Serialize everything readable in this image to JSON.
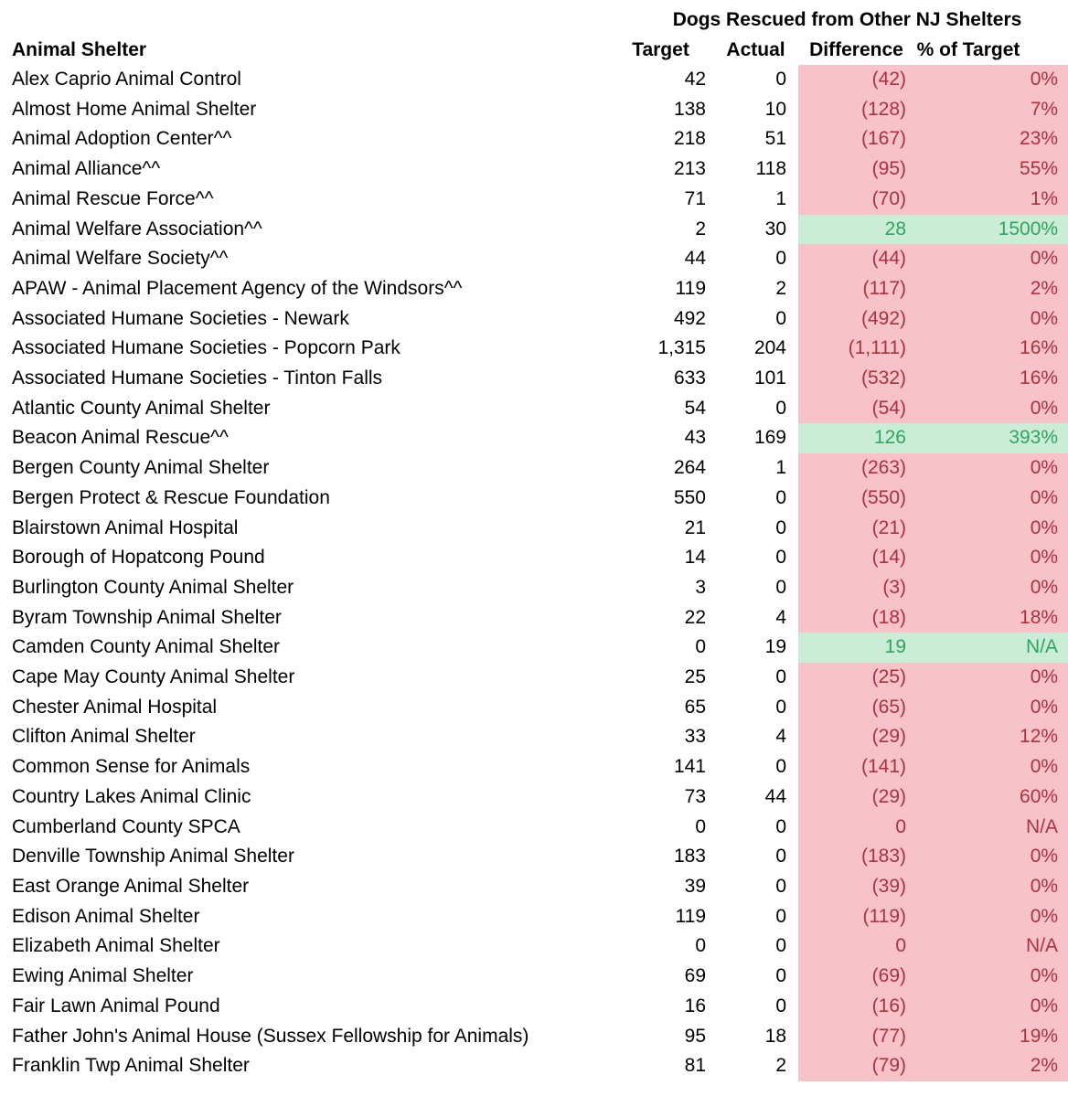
{
  "table": {
    "title": "Dogs Rescued from Other NJ Shelters",
    "columns": {
      "shelter": "Animal Shelter",
      "target": "Target",
      "actual": "Actual",
      "difference": "Difference",
      "pct_of_target": "% of Target"
    },
    "rows": [
      {
        "shelter": "Alex Caprio Animal Control",
        "target": "42",
        "actual": "0",
        "difference": "(42)",
        "pct_of_target": "0%",
        "status": "neg"
      },
      {
        "shelter": "Almost Home Animal Shelter",
        "target": "138",
        "actual": "10",
        "difference": "(128)",
        "pct_of_target": "7%",
        "status": "neg"
      },
      {
        "shelter": "Animal Adoption Center^^",
        "target": "218",
        "actual": "51",
        "difference": "(167)",
        "pct_of_target": "23%",
        "status": "neg"
      },
      {
        "shelter": "Animal Alliance^^",
        "target": "213",
        "actual": "118",
        "difference": "(95)",
        "pct_of_target": "55%",
        "status": "neg"
      },
      {
        "shelter": "Animal Rescue Force^^",
        "target": "71",
        "actual": "1",
        "difference": "(70)",
        "pct_of_target": "1%",
        "status": "neg"
      },
      {
        "shelter": "Animal Welfare Association^^",
        "target": "2",
        "actual": "30",
        "difference": "28",
        "pct_of_target": "1500%",
        "status": "pos"
      },
      {
        "shelter": "Animal Welfare Society^^",
        "target": "44",
        "actual": "0",
        "difference": "(44)",
        "pct_of_target": "0%",
        "status": "neg"
      },
      {
        "shelter": "APAW - Animal Placement Agency of the Windsors^^",
        "target": "119",
        "actual": "2",
        "difference": "(117)",
        "pct_of_target": "2%",
        "status": "neg"
      },
      {
        "shelter": "Associated Humane Societies - Newark",
        "target": "492",
        "actual": "0",
        "difference": "(492)",
        "pct_of_target": "0%",
        "status": "neg"
      },
      {
        "shelter": "Associated Humane Societies - Popcorn Park",
        "target": "1,315",
        "actual": "204",
        "difference": "(1,111)",
        "pct_of_target": "16%",
        "status": "neg"
      },
      {
        "shelter": "Associated Humane Societies - Tinton Falls",
        "target": "633",
        "actual": "101",
        "difference": "(532)",
        "pct_of_target": "16%",
        "status": "neg"
      },
      {
        "shelter": "Atlantic County Animal Shelter",
        "target": "54",
        "actual": "0",
        "difference": "(54)",
        "pct_of_target": "0%",
        "status": "neg"
      },
      {
        "shelter": "Beacon Animal Rescue^^",
        "target": "43",
        "actual": "169",
        "difference": "126",
        "pct_of_target": "393%",
        "status": "pos"
      },
      {
        "shelter": "Bergen County Animal Shelter",
        "target": "264",
        "actual": "1",
        "difference": "(263)",
        "pct_of_target": "0%",
        "status": "neg"
      },
      {
        "shelter": "Bergen Protect & Rescue Foundation",
        "target": "550",
        "actual": "0",
        "difference": "(550)",
        "pct_of_target": "0%",
        "status": "neg"
      },
      {
        "shelter": "Blairstown Animal Hospital",
        "target": "21",
        "actual": "0",
        "difference": "(21)",
        "pct_of_target": "0%",
        "status": "neg"
      },
      {
        "shelter": "Borough of Hopatcong Pound",
        "target": "14",
        "actual": "0",
        "difference": "(14)",
        "pct_of_target": "0%",
        "status": "neg"
      },
      {
        "shelter": "Burlington County Animal Shelter",
        "target": "3",
        "actual": "0",
        "difference": "(3)",
        "pct_of_target": "0%",
        "status": "neg"
      },
      {
        "shelter": "Byram Township Animal Shelter",
        "target": "22",
        "actual": "4",
        "difference": "(18)",
        "pct_of_target": "18%",
        "status": "neg"
      },
      {
        "shelter": "Camden County Animal Shelter",
        "target": "0",
        "actual": "19",
        "difference": "19",
        "pct_of_target": "N/A",
        "status": "pos"
      },
      {
        "shelter": "Cape May County Animal Shelter",
        "target": "25",
        "actual": "0",
        "difference": "(25)",
        "pct_of_target": "0%",
        "status": "neg"
      },
      {
        "shelter": "Chester Animal Hospital",
        "target": "65",
        "actual": "0",
        "difference": "(65)",
        "pct_of_target": "0%",
        "status": "neg"
      },
      {
        "shelter": "Clifton Animal Shelter",
        "target": "33",
        "actual": "4",
        "difference": "(29)",
        "pct_of_target": "12%",
        "status": "neg"
      },
      {
        "shelter": "Common Sense for Animals",
        "target": "141",
        "actual": "0",
        "difference": "(141)",
        "pct_of_target": "0%",
        "status": "neg"
      },
      {
        "shelter": "Country Lakes Animal Clinic",
        "target": "73",
        "actual": "44",
        "difference": "(29)",
        "pct_of_target": "60%",
        "status": "neg"
      },
      {
        "shelter": "Cumberland County SPCA",
        "target": "0",
        "actual": "0",
        "difference": "0",
        "pct_of_target": "N/A",
        "status": "neg"
      },
      {
        "shelter": "Denville Township Animal Shelter",
        "target": "183",
        "actual": "0",
        "difference": "(183)",
        "pct_of_target": "0%",
        "status": "neg"
      },
      {
        "shelter": "East Orange Animal Shelter",
        "target": "39",
        "actual": "0",
        "difference": "(39)",
        "pct_of_target": "0%",
        "status": "neg"
      },
      {
        "shelter": "Edison Animal Shelter",
        "target": "119",
        "actual": "0",
        "difference": "(119)",
        "pct_of_target": "0%",
        "status": "neg"
      },
      {
        "shelter": "Elizabeth Animal Shelter",
        "target": "0",
        "actual": "0",
        "difference": "0",
        "pct_of_target": "N/A",
        "status": "neg"
      },
      {
        "shelter": "Ewing Animal Shelter",
        "target": "69",
        "actual": "0",
        "difference": "(69)",
        "pct_of_target": "0%",
        "status": "neg"
      },
      {
        "shelter": "Fair Lawn Animal Pound",
        "target": "16",
        "actual": "0",
        "difference": "(16)",
        "pct_of_target": "0%",
        "status": "neg"
      },
      {
        "shelter": "Father John's Animal House (Sussex Fellowship for Animals)",
        "target": "95",
        "actual": "18",
        "difference": "(77)",
        "pct_of_target": "19%",
        "status": "neg"
      },
      {
        "shelter": "Franklin Twp Animal Shelter",
        "target": "81",
        "actual": "2",
        "difference": "(79)",
        "pct_of_target": "2%",
        "status": "neg"
      }
    ]
  },
  "colors": {
    "negative_fill": "#F8C3C8",
    "negative_text": "#A93240",
    "positive_fill": "#CBECD6",
    "positive_text": "#2FA55F"
  }
}
